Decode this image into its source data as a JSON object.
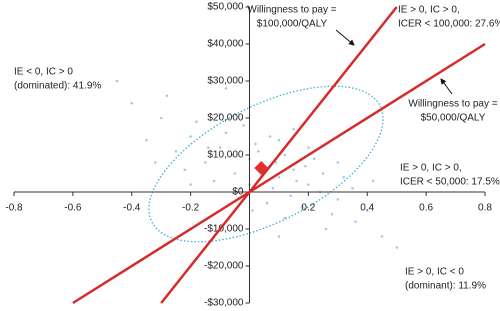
{
  "chart_data": {
    "type": "scatter",
    "xlim": [
      -0.8,
      0.8
    ],
    "xticks": [
      -0.8,
      -0.6,
      -0.4,
      -0.2,
      0.2,
      0.4,
      0.6,
      0.8
    ],
    "ylim": [
      -30000,
      50000
    ],
    "yticks": [
      {
        "value": 50000,
        "label": "$50,000"
      },
      {
        "value": 40000,
        "label": "$40,000"
      },
      {
        "value": 30000,
        "label": "$30,000"
      },
      {
        "value": 20000,
        "label": "$20,000"
      },
      {
        "value": 10000,
        "label": "$10,000"
      },
      {
        "value": 0,
        "label": "$0"
      },
      {
        "value": -10000,
        "label": "-$10,000"
      },
      {
        "value": -20000,
        "label": "-$20,000"
      },
      {
        "value": -30000,
        "label": "-$30,000"
      }
    ],
    "color": "#a9c8ea",
    "x": [
      0.05,
      0.1,
      -0.1,
      0.2,
      -0.2,
      0.0,
      0.15,
      -0.05,
      0.3,
      -0.3,
      0.12,
      -0.15,
      0.25,
      0.08,
      -0.08,
      0.18,
      0.02,
      -0.25,
      0.35,
      0.22,
      -0.12,
      0.06,
      -0.02,
      0.28,
      -0.35,
      0.1,
      0.14,
      -0.18,
      0.04,
      0.32,
      -0.06,
      0.2,
      0.0,
      -0.22,
      0.4,
      -0.4,
      0.16,
      0.09,
      -0.1,
      0.26,
      0.12,
      -0.28,
      0.03,
      0.19,
      -0.14,
      0.07,
      0.3,
      -0.03,
      0.24,
      0.45,
      -0.45,
      0.5,
      0.01,
      -0.2,
      0.36,
      0.1,
      -0.08,
      0.15,
      0.42,
      -0.32
    ],
    "values": [
      7000,
      4000,
      12000,
      2000,
      15000,
      9000,
      6000,
      5000,
      -2000,
      20000,
      10000,
      8000,
      5000,
      1000,
      16000,
      -4000,
      13000,
      11000,
      1000,
      9000,
      3000,
      -3000,
      18000,
      -6000,
      14000,
      14000,
      -1000,
      19000,
      4000,
      4000,
      10000,
      12000,
      2000,
      6000,
      -5000,
      24000,
      3000,
      8000,
      21000,
      -10000,
      -7000,
      26000,
      11000,
      7000,
      12000,
      15000,
      8000,
      1000,
      0,
      -12000,
      30000,
      -15000,
      -5000,
      2000,
      -8000,
      -12000,
      28000,
      17000,
      3000,
      8000
    ],
    "mean": {
      "x": 0.04,
      "y": 6500,
      "color": "#e03030"
    },
    "line_color": "#d62b2b",
    "lines": [
      {
        "slope": 100000,
        "label": [
          "Willingness to pay =",
          "$100,000/QALY"
        ]
      },
      {
        "slope": 50000,
        "label": [
          "Willingness to pay =",
          "$50,000/QALY"
        ]
      }
    ],
    "quadrants": [
      [
        "IE < 0, IC > 0",
        "(dominated): 41.9%"
      ],
      [
        "IE > 0, IC > 0,",
        "ICER < 100,000: 27.6%"
      ],
      [
        "IE > 0, IC > 0,",
        "ICER < 50,000: 17.5%"
      ],
      [
        "IE > 0, IC < 0",
        "(dominant): 11.9%"
      ]
    ]
  }
}
